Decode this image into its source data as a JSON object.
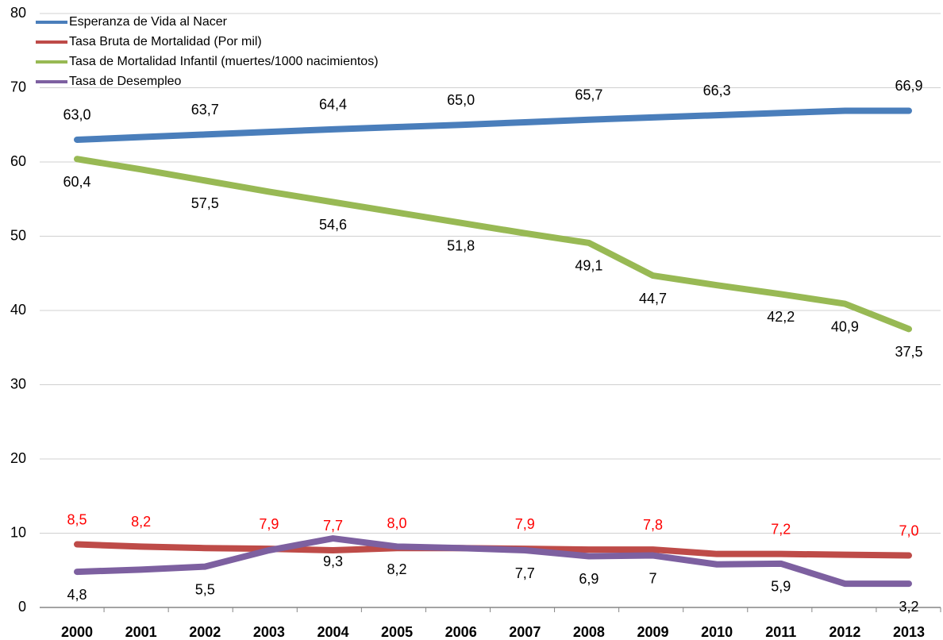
{
  "chart_data": {
    "type": "line",
    "categories": [
      "2000",
      "2001",
      "2002",
      "2003",
      "2004",
      "2005",
      "2006",
      "2007",
      "2008",
      "2009",
      "2010",
      "2011",
      "2012",
      "2013"
    ],
    "ylim": [
      0,
      80
    ],
    "yticks": [
      0,
      10,
      20,
      30,
      40,
      50,
      60,
      70,
      80
    ],
    "grid": true,
    "legend": "upper-left",
    "series": [
      {
        "name": "Esperanza de Vida al Nacer",
        "color": "#4a7ebb",
        "label_color": "#000000",
        "label_position": "above",
        "values": [
          63.0,
          63.35,
          63.7,
          64.05,
          64.4,
          64.7,
          65.0,
          65.35,
          65.7,
          66.0,
          66.3,
          66.6,
          66.9,
          66.9
        ],
        "value_labels": [
          "63,0",
          null,
          "63,7",
          null,
          "64,4",
          null,
          "65,0",
          null,
          "65,7",
          null,
          "66,3",
          null,
          null,
          "66,9"
        ]
      },
      {
        "name": "Tasa Bruta de Mortalidad (Por mil)",
        "color": "#be4b48",
        "label_color": "#ff0000",
        "label_position": "above",
        "values": [
          8.5,
          8.2,
          8.0,
          7.9,
          7.7,
          8.0,
          8.0,
          7.9,
          7.8,
          7.8,
          7.2,
          7.2,
          7.1,
          7.0
        ],
        "value_labels": [
          "8,5",
          "8,2",
          null,
          "7,9",
          "7,7",
          "8,0",
          null,
          "7,9",
          null,
          "7,8",
          null,
          "7,2",
          null,
          "7,0"
        ]
      },
      {
        "name": "Tasa de Mortalidad Infantil (muertes/1000 nacimientos)",
        "color": "#98b954",
        "label_color": "#000000",
        "label_position": "below",
        "values": [
          60.4,
          59.0,
          57.5,
          56.0,
          54.6,
          53.2,
          51.8,
          50.4,
          49.1,
          44.7,
          43.4,
          42.2,
          40.9,
          37.5
        ],
        "value_labels": [
          "60,4",
          null,
          "57,5",
          null,
          "54,6",
          null,
          "51,8",
          null,
          "49,1",
          "44,7",
          null,
          "42,2",
          "40,9",
          "37,5"
        ]
      },
      {
        "name": "Tasa de Desempleo",
        "color": "#7d60a0",
        "label_color": "#000000",
        "label_position": "below",
        "values": [
          4.8,
          5.1,
          5.5,
          7.7,
          9.3,
          8.2,
          8.0,
          7.7,
          6.9,
          7,
          5.8,
          5.9,
          3.2,
          3.2
        ],
        "value_labels": [
          "4,8",
          null,
          "5,5",
          null,
          "9,3",
          "8,2",
          null,
          "7,7",
          "6,9",
          "7",
          null,
          "5,9",
          null,
          "3,2"
        ]
      }
    ]
  }
}
